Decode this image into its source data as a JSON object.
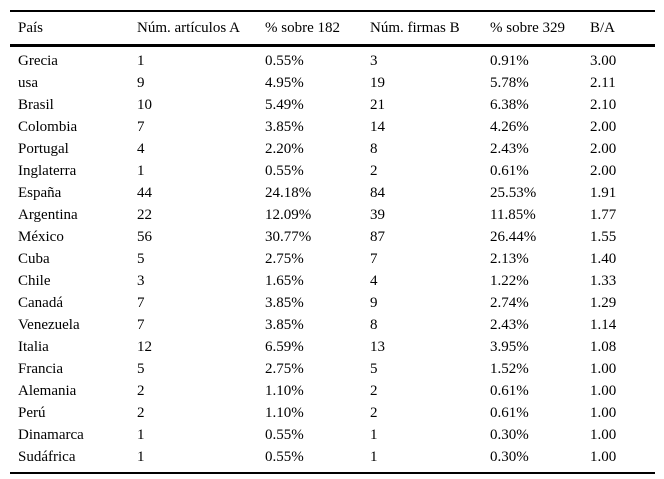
{
  "table": {
    "columns": [
      {
        "key": "pais",
        "label": "País"
      },
      {
        "key": "num_articulos_a",
        "label": "Núm. artículos A"
      },
      {
        "key": "pct_sobre_182",
        "label": "% sobre 182"
      },
      {
        "key": "num_firmas_b",
        "label": "Núm. firmas B"
      },
      {
        "key": "pct_sobre_329",
        "label": "% sobre 329"
      },
      {
        "key": "b_sobre_a",
        "label": "B/A"
      }
    ],
    "rows": [
      [
        "Grecia",
        "1",
        "0.55%",
        "3",
        "0.91%",
        "3.00"
      ],
      [
        "usa",
        "9",
        "4.95%",
        "19",
        "5.78%",
        "2.11"
      ],
      [
        "Brasil",
        "10",
        "5.49%",
        "21",
        "6.38%",
        "2.10"
      ],
      [
        "Colombia",
        "7",
        "3.85%",
        "14",
        "4.26%",
        "2.00"
      ],
      [
        "Portugal",
        "4",
        "2.20%",
        "8",
        "2.43%",
        "2.00"
      ],
      [
        "Inglaterra",
        "1",
        "0.55%",
        "2",
        "0.61%",
        "2.00"
      ],
      [
        "España",
        "44",
        "24.18%",
        "84",
        "25.53%",
        "1.91"
      ],
      [
        "Argentina",
        "22",
        "12.09%",
        "39",
        "11.85%",
        "1.77"
      ],
      [
        "México",
        "56",
        "30.77%",
        "87",
        "26.44%",
        "1.55"
      ],
      [
        "Cuba",
        "5",
        "2.75%",
        "7",
        "2.13%",
        "1.40"
      ],
      [
        "Chile",
        "3",
        "1.65%",
        "4",
        "1.22%",
        "1.33"
      ],
      [
        "Canadá",
        "7",
        "3.85%",
        "9",
        "2.74%",
        "1.29"
      ],
      [
        "Venezuela",
        "7",
        "3.85%",
        "8",
        "2.43%",
        "1.14"
      ],
      [
        "Italia",
        "12",
        "6.59%",
        "13",
        "3.95%",
        "1.08"
      ],
      [
        "Francia",
        "5",
        "2.75%",
        "5",
        "1.52%",
        "1.00"
      ],
      [
        "Alemania",
        "2",
        "1.10%",
        "2",
        "0.61%",
        "1.00"
      ],
      [
        "Perú",
        "2",
        "1.10%",
        "2",
        "0.61%",
        "1.00"
      ],
      [
        "Dinamarca",
        "1",
        "0.55%",
        "1",
        "0.30%",
        "1.00"
      ],
      [
        "Sudáfrica",
        "1",
        "0.55%",
        "1",
        "0.30%",
        "1.00"
      ]
    ],
    "colors": {
      "text": "#000000",
      "background": "#ffffff",
      "rule": "#000000"
    }
  }
}
